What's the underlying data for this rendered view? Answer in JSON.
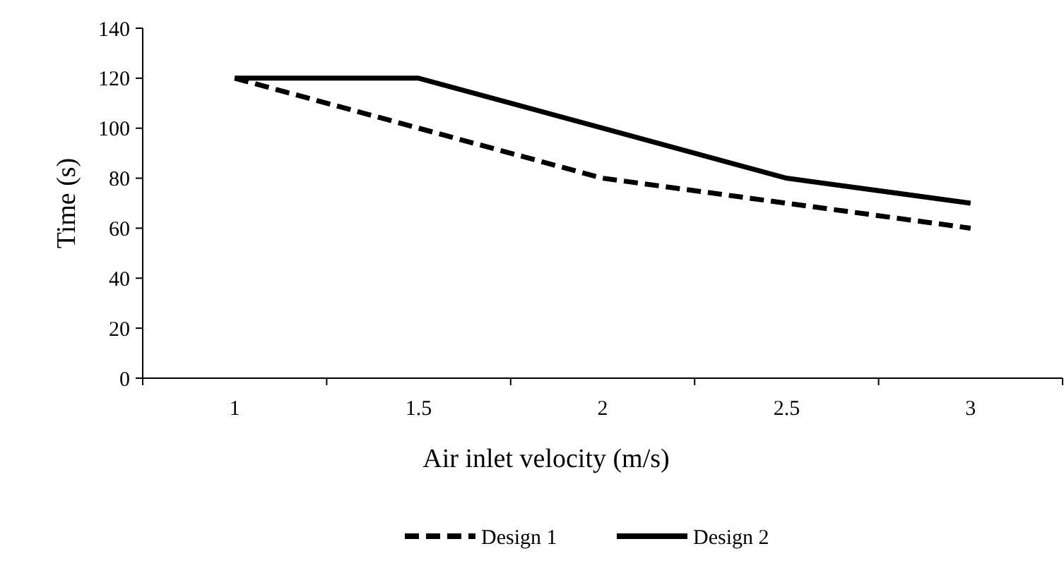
{
  "chart_data": {
    "type": "line",
    "xlabel": "Air inlet velocity (m/s)",
    "ylabel": "Time (s)",
    "categories": [
      "1",
      "1.5",
      "2",
      "2.5",
      "3"
    ],
    "ylim": [
      0,
      140
    ],
    "yticks": [
      0,
      20,
      40,
      60,
      80,
      100,
      120,
      140
    ],
    "series": [
      {
        "name": "Design 1",
        "color": "#000000",
        "line_style": "dashed",
        "values": [
          120,
          100,
          80,
          70,
          60
        ]
      },
      {
        "name": "Design 2",
        "color": "#000000",
        "line_style": "solid",
        "values": [
          120,
          120,
          100,
          80,
          70
        ]
      }
    ],
    "legend": "bottom",
    "grid": false,
    "marker": "none"
  }
}
